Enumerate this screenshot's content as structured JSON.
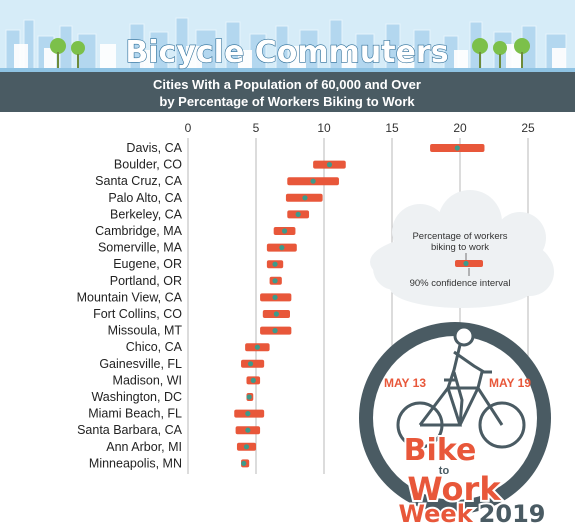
{
  "banner": {
    "title": "Bicycle Commuters",
    "subtitle_line1": "Cities With a Population of 60,000 and Over",
    "subtitle_line2": "by Percentage of Workers Biking to Work"
  },
  "legend": {
    "estimate_label_line1": "Percentage of workers",
    "estimate_label_line2": "biking to work",
    "interval_label": "90% confidence interval"
  },
  "badge": {
    "date_start": "MAY 13",
    "date_end": "MAY 19",
    "word_bike": "Bike",
    "word_to": "to",
    "word_work": "Work",
    "word_week": "Week",
    "year": "2019"
  },
  "colors": {
    "interval": "#e8573a",
    "estimate": "#3d9a8b",
    "header_band": "#4a5b63",
    "title_text": "#ffffff",
    "badge_ring": "#4a5b63",
    "badge_text": "#e8573a",
    "grid": "#b8b8b8",
    "cloud": "#eef1f3"
  },
  "chart_data": {
    "type": "dot-with-error-bars",
    "title": "Cities With a Population of 60,000 and Over by Percentage of Workers Biking to Work",
    "xlim": [
      0,
      25
    ],
    "x_ticks": [
      0,
      5,
      10,
      15,
      20,
      25
    ],
    "grid": true,
    "legend_position": "right",
    "series": [
      {
        "name": "Percentage of workers biking to work",
        "points": [
          {
            "city": "Davis, CA",
            "value": 19.8,
            "low": 17.8,
            "high": 21.8
          },
          {
            "city": "Boulder, CO",
            "value": 10.4,
            "low": 9.2,
            "high": 11.6
          },
          {
            "city": "Santa Cruz, CA",
            "value": 9.2,
            "low": 7.3,
            "high": 11.1
          },
          {
            "city": "Palo Alto, CA",
            "value": 8.6,
            "low": 7.2,
            "high": 9.9
          },
          {
            "city": "Berkeley, CA",
            "value": 8.1,
            "low": 7.3,
            "high": 8.9
          },
          {
            "city": "Cambridge, MA",
            "value": 7.1,
            "low": 6.3,
            "high": 7.9
          },
          {
            "city": "Somerville, MA",
            "value": 6.9,
            "low": 5.8,
            "high": 8.0
          },
          {
            "city": "Eugene, OR",
            "value": 6.4,
            "low": 5.8,
            "high": 7.0
          },
          {
            "city": "Portland, OR",
            "value": 6.4,
            "low": 6.0,
            "high": 6.9
          },
          {
            "city": "Mountain View, CA",
            "value": 6.4,
            "low": 5.3,
            "high": 7.6
          },
          {
            "city": "Fort Collins, CO",
            "value": 6.5,
            "low": 5.5,
            "high": 7.5
          },
          {
            "city": "Missoula, MT",
            "value": 6.4,
            "low": 5.3,
            "high": 7.6
          },
          {
            "city": "Chico, CA",
            "value": 5.1,
            "low": 4.2,
            "high": 6.0
          },
          {
            "city": "Gainesville, FL",
            "value": 4.6,
            "low": 3.9,
            "high": 5.6
          },
          {
            "city": "Madison, WI",
            "value": 4.8,
            "low": 4.3,
            "high": 5.3
          },
          {
            "city": "Washington, DC",
            "value": 4.5,
            "low": 4.3,
            "high": 4.8
          },
          {
            "city": "Miami Beach, FL",
            "value": 4.4,
            "low": 3.4,
            "high": 5.6
          },
          {
            "city": "Santa Barbara, CA",
            "value": 4.4,
            "low": 3.5,
            "high": 5.3
          },
          {
            "city": "Ann Arbor, MI",
            "value": 4.3,
            "low": 3.6,
            "high": 5.0
          },
          {
            "city": "Minneapolis, MN",
            "value": 4.1,
            "low": 3.9,
            "high": 4.5
          }
        ]
      }
    ]
  }
}
